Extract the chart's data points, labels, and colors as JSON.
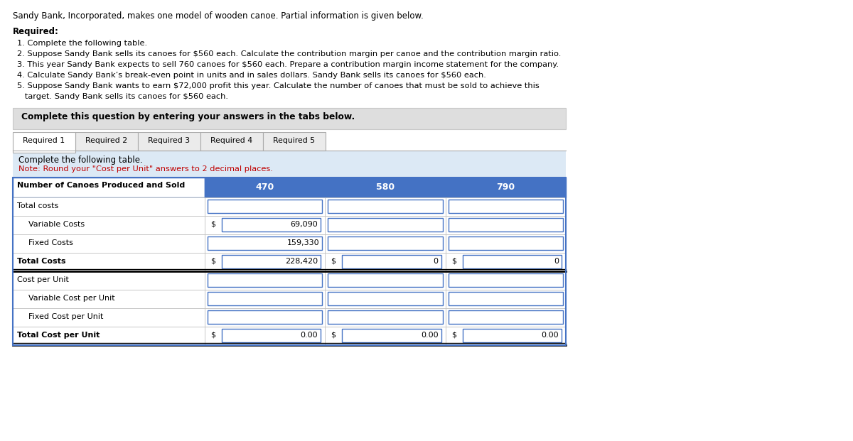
{
  "title_line": "Sandy Bank, Incorporated, makes one model of wooden canoe. Partial information is given below.",
  "required_label": "Required:",
  "required_items": [
    "1. Complete the following table.",
    "2. Suppose Sandy Bank sells its canoes for $560 each. Calculate the contribution margin per canoe and the contribution margin ratio.",
    "3. This year Sandy Bank expects to sell 760 canoes for $560 each. Prepare a contribution margin income statement for the company.",
    "4. Calculate Sandy Bank’s break-even point in units and in sales dollars. Sandy Bank sells its canoes for $560 each.",
    "5. Suppose Sandy Bank wants to earn $72,000 profit this year. Calculate the number of canoes that must be sold to achieve this",
    "   target. Sandy Bank sells its canoes for $560 each."
  ],
  "complete_label": "Complete this question by entering your answers in the tabs below.",
  "tabs": [
    "Required 1",
    "Required 2",
    "Required 3",
    "Required 4",
    "Required 5"
  ],
  "active_tab": 0,
  "instruction_line1": "Complete the following table.",
  "instruction_line2": "Note: Round your \"Cost per Unit\" answers to 2 decimal places.",
  "table_header_col0": "Number of Canoes Produced and Sold",
  "table_header_cols": [
    "470",
    "580",
    "790"
  ],
  "table_rows": [
    {
      "label": "Total costs",
      "indent": false,
      "values": [
        "",
        "",
        ""
      ],
      "dollar_prefix": [
        false,
        false,
        false
      ],
      "bold": false,
      "double_line": false
    },
    {
      "label": "Variable Costs",
      "indent": true,
      "values": [
        "69,090",
        "",
        ""
      ],
      "dollar_prefix": [
        true,
        false,
        false
      ],
      "bold": false,
      "double_line": false
    },
    {
      "label": "Fixed Costs",
      "indent": true,
      "values": [
        "159,330",
        "",
        ""
      ],
      "dollar_prefix": [
        false,
        false,
        false
      ],
      "bold": false,
      "double_line": false
    },
    {
      "label": "Total Costs",
      "indent": false,
      "values": [
        "228,420",
        "0",
        "0"
      ],
      "dollar_prefix": [
        true,
        true,
        true
      ],
      "bold": true,
      "double_line": true
    },
    {
      "label": "Cost per Unit",
      "indent": false,
      "values": [
        "",
        "",
        ""
      ],
      "dollar_prefix": [
        false,
        false,
        false
      ],
      "bold": false,
      "double_line": false
    },
    {
      "label": "Variable Cost per Unit",
      "indent": true,
      "values": [
        "",
        "",
        ""
      ],
      "dollar_prefix": [
        false,
        false,
        false
      ],
      "bold": false,
      "double_line": false
    },
    {
      "label": "Fixed Cost per Unit",
      "indent": true,
      "values": [
        "",
        "",
        ""
      ],
      "dollar_prefix": [
        false,
        false,
        false
      ],
      "bold": false,
      "double_line": false
    },
    {
      "label": "Total Cost per Unit",
      "indent": false,
      "values": [
        "0.00",
        "0.00",
        "0.00"
      ],
      "dollar_prefix": [
        true,
        true,
        true
      ],
      "bold": true,
      "double_line": true
    }
  ],
  "header_bg": "#4472C4",
  "tab_bg": "#EBEBEB",
  "active_tab_bg": "#FFFFFF",
  "instruction_bg": "#DCE9F5",
  "gray_box_bg": "#DEDEDE",
  "table_border": "#4472C4",
  "input_border": "#4472C4",
  "note_color": "#C00000"
}
